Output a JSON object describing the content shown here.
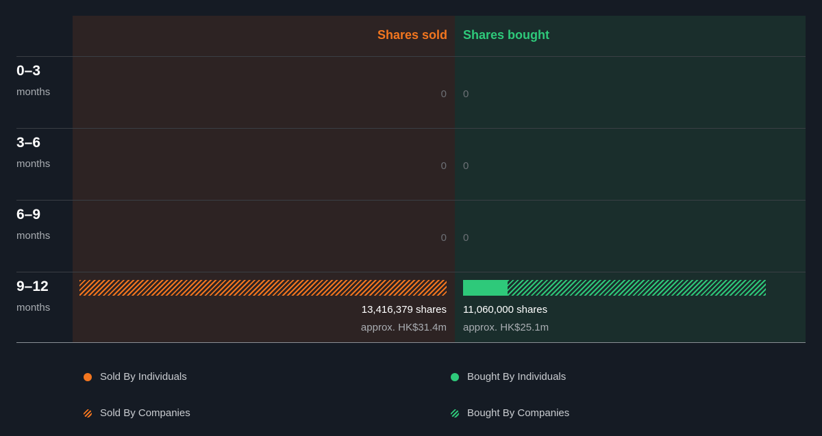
{
  "chart_data": {
    "type": "bar",
    "categories": [
      "0–3 months",
      "3–6 months",
      "6–9 months",
      "9–12 months"
    ],
    "periods": [
      {
        "label": "0–3",
        "unit": "months",
        "sold": 0,
        "bought": 0
      },
      {
        "label": "3–6",
        "unit": "months",
        "sold": 0,
        "bought": 0
      },
      {
        "label": "6–9",
        "unit": "months",
        "sold": 0,
        "bought": 0
      },
      {
        "label": "9–12",
        "unit": "months",
        "sold": 13416379,
        "bought": 11060000,
        "sold_by_companies": 13416379,
        "bought_by_individuals": 1630000,
        "bought_by_companies": 9430000,
        "sold_text": "13,416,379 shares",
        "sold_value": "approx. HK$31.4m",
        "bought_text": "11,060,000 shares",
        "bought_value": "approx. HK$25.1m"
      }
    ],
    "zero_label": "0",
    "headers": {
      "sold": "Shares sold",
      "bought": "Shares bought"
    },
    "max_shares": 13416379,
    "legend_placement": "bottom",
    "legend": [
      {
        "label": "Sold By Individuals",
        "color": "#f3761f",
        "style": "solid"
      },
      {
        "label": "Bought By Individuals",
        "color": "#2ec97a",
        "style": "solid"
      },
      {
        "label": "Sold By Companies",
        "color": "#f3761f",
        "style": "hatched"
      },
      {
        "label": "Bought By Companies",
        "color": "#2ec97a",
        "style": "hatched"
      }
    ],
    "colors": {
      "sold": "#f3761f",
      "bought": "#2ec97a",
      "sold_bg": "#2d2323",
      "bought_bg": "#1a2e2c",
      "page_bg": "#151b24"
    }
  }
}
